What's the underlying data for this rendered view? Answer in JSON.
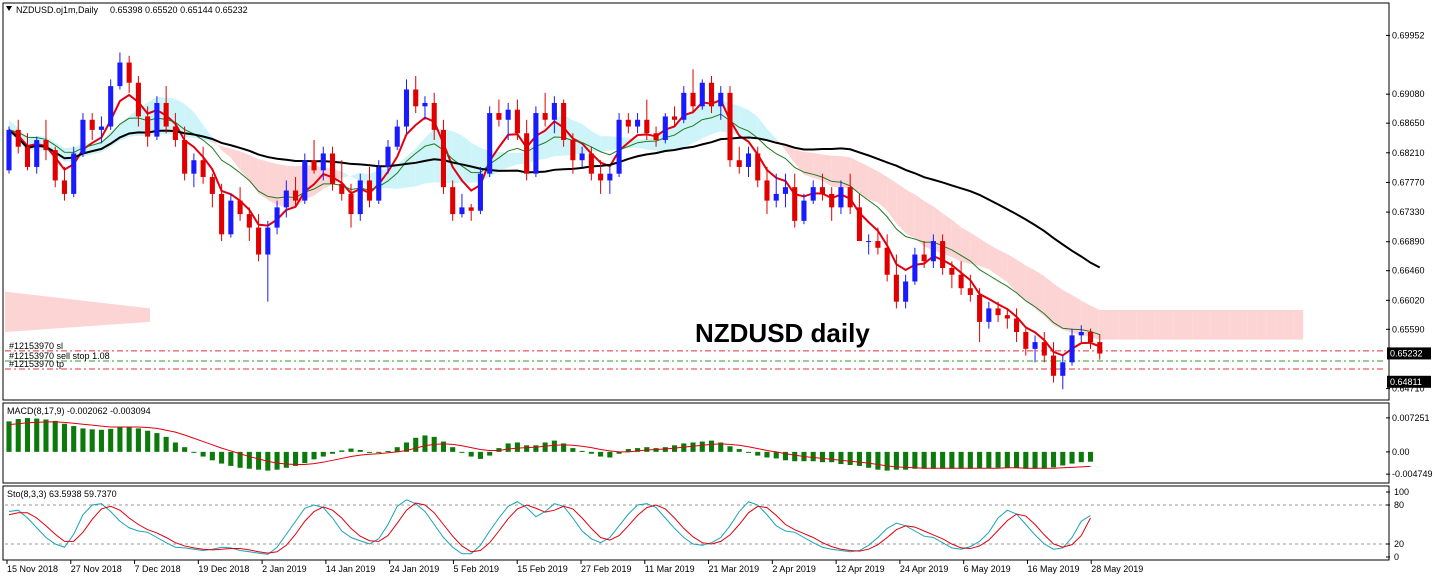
{
  "chart_data": {
    "type": "candlestick",
    "symbol_header": "NZDUSD.oj1m,Daily",
    "ohlc_header": "0.65398 0.65520 0.65144 0.65232",
    "annotation": "NZDUSD daily",
    "price_axis": {
      "ticks": [
        "0.69952",
        "0.69080",
        "0.68650",
        "0.68210",
        "0.67770",
        "0.67330",
        "0.66890",
        "0.66460",
        "0.66020",
        "0.65590",
        "0.64710"
      ],
      "ylim": [
        0.646,
        0.703
      ],
      "current_price": "0.65232",
      "tp_price": "0.64811",
      "colors": {
        "current_price_box": "#000000",
        "tp_price_box": "#000000"
      }
    },
    "date_labels": [
      "15 Nov 2018",
      "27 Nov 2018",
      "7 Dec 2018",
      "19 Dec 2018",
      "2 Jan 2019",
      "14 Jan 2019",
      "24 Jan 2019",
      "5 Feb 2019",
      "15 Feb 2019",
      "27 Feb 2019",
      "11 Mar 2019",
      "21 Mar 2019",
      "2 Apr 2019",
      "12 Apr 2019",
      "24 Apr 2019",
      "6 May 2019",
      "16 May 2019",
      "28 May 2019"
    ],
    "order_lines": [
      {
        "label": "#12153970 sl",
        "price": 0.6527,
        "color": "#e0303a",
        "style": "dash-dot"
      },
      {
        "label": "#12153970 sell stop 1.08",
        "price": 0.6512,
        "color": "#27a327",
        "style": "dash-dot"
      },
      {
        "label": "#12153970 tp",
        "price": 0.65,
        "color": "#e0303a",
        "style": "dash-dot"
      }
    ],
    "candles": [
      [
        0.6795,
        0.686,
        0.679,
        0.6855
      ],
      [
        0.6855,
        0.687,
        0.682,
        0.683
      ],
      [
        0.683,
        0.685,
        0.6795,
        0.68
      ],
      [
        0.68,
        0.6845,
        0.679,
        0.684
      ],
      [
        0.684,
        0.687,
        0.681,
        0.6825
      ],
      [
        0.6825,
        0.683,
        0.677,
        0.678
      ],
      [
        0.678,
        0.68,
        0.675,
        0.676
      ],
      [
        0.676,
        0.683,
        0.6755,
        0.682
      ],
      [
        0.682,
        0.688,
        0.6815,
        0.687
      ],
      [
        0.687,
        0.688,
        0.684,
        0.6855
      ],
      [
        0.6855,
        0.6875,
        0.6835,
        0.686
      ],
      [
        0.686,
        0.693,
        0.6855,
        0.692
      ],
      [
        0.692,
        0.697,
        0.6915,
        0.6955
      ],
      [
        0.6955,
        0.6965,
        0.691,
        0.6925
      ],
      [
        0.6925,
        0.6935,
        0.686,
        0.6875
      ],
      [
        0.6875,
        0.689,
        0.683,
        0.6845
      ],
      [
        0.6845,
        0.6905,
        0.684,
        0.6895
      ],
      [
        0.6895,
        0.692,
        0.685,
        0.686
      ],
      [
        0.686,
        0.688,
        0.683,
        0.684
      ],
      [
        0.684,
        0.686,
        0.678,
        0.679
      ],
      [
        0.679,
        0.682,
        0.677,
        0.681
      ],
      [
        0.681,
        0.683,
        0.6775,
        0.6785
      ],
      [
        0.6785,
        0.679,
        0.674,
        0.676
      ],
      [
        0.676,
        0.6775,
        0.669,
        0.67
      ],
      [
        0.67,
        0.676,
        0.6695,
        0.675
      ],
      [
        0.675,
        0.677,
        0.672,
        0.673
      ],
      [
        0.673,
        0.674,
        0.669,
        0.671
      ],
      [
        0.671,
        0.673,
        0.666,
        0.667
      ],
      [
        0.667,
        0.672,
        0.66,
        0.671
      ],
      [
        0.671,
        0.675,
        0.67,
        0.674
      ],
      [
        0.674,
        0.678,
        0.6725,
        0.6765
      ],
      [
        0.6765,
        0.6785,
        0.674,
        0.675
      ],
      [
        0.675,
        0.682,
        0.6745,
        0.681
      ],
      [
        0.681,
        0.684,
        0.679,
        0.6795
      ],
      [
        0.6795,
        0.683,
        0.678,
        0.682
      ],
      [
        0.682,
        0.683,
        0.6765,
        0.6775
      ],
      [
        0.6775,
        0.681,
        0.675,
        0.676
      ],
      [
        0.676,
        0.6775,
        0.671,
        0.673
      ],
      [
        0.673,
        0.679,
        0.672,
        0.678
      ],
      [
        0.678,
        0.68,
        0.674,
        0.675
      ],
      [
        0.675,
        0.681,
        0.6745,
        0.68
      ],
      [
        0.68,
        0.684,
        0.679,
        0.683
      ],
      [
        0.683,
        0.687,
        0.6825,
        0.686
      ],
      [
        0.686,
        0.693,
        0.685,
        0.6915
      ],
      [
        0.6915,
        0.6935,
        0.688,
        0.689
      ],
      [
        0.689,
        0.6905,
        0.687,
        0.6895
      ],
      [
        0.6895,
        0.691,
        0.684,
        0.6855
      ],
      [
        0.6855,
        0.687,
        0.676,
        0.677
      ],
      [
        0.677,
        0.678,
        0.672,
        0.673
      ],
      [
        0.673,
        0.676,
        0.6725,
        0.674
      ],
      [
        0.674,
        0.6745,
        0.672,
        0.6735
      ],
      [
        0.6735,
        0.68,
        0.673,
        0.679
      ],
      [
        0.679,
        0.689,
        0.6785,
        0.688
      ],
      [
        0.688,
        0.69,
        0.686,
        0.687
      ],
      [
        0.687,
        0.6895,
        0.684,
        0.6885
      ],
      [
        0.6885,
        0.69,
        0.684,
        0.685
      ],
      [
        0.685,
        0.687,
        0.678,
        0.679
      ],
      [
        0.679,
        0.689,
        0.6785,
        0.688
      ],
      [
        0.688,
        0.691,
        0.686,
        0.687
      ],
      [
        0.687,
        0.6905,
        0.685,
        0.6895
      ],
      [
        0.6895,
        0.69,
        0.683,
        0.684
      ],
      [
        0.684,
        0.685,
        0.679,
        0.681
      ],
      [
        0.681,
        0.683,
        0.68,
        0.682
      ],
      [
        0.682,
        0.683,
        0.678,
        0.679
      ],
      [
        0.679,
        0.681,
        0.676,
        0.678
      ],
      [
        0.678,
        0.68,
        0.676,
        0.679
      ],
      [
        0.679,
        0.688,
        0.6785,
        0.687
      ],
      [
        0.687,
        0.688,
        0.685,
        0.686
      ],
      [
        0.686,
        0.688,
        0.685,
        0.687
      ],
      [
        0.687,
        0.69,
        0.684,
        0.685
      ],
      [
        0.685,
        0.686,
        0.683,
        0.684
      ],
      [
        0.684,
        0.688,
        0.6835,
        0.6875
      ],
      [
        0.6875,
        0.689,
        0.686,
        0.687
      ],
      [
        0.687,
        0.692,
        0.6865,
        0.691
      ],
      [
        0.691,
        0.6945,
        0.688,
        0.689
      ],
      [
        0.689,
        0.693,
        0.6885,
        0.6925
      ],
      [
        0.6925,
        0.6935,
        0.688,
        0.689
      ],
      [
        0.689,
        0.692,
        0.687,
        0.691
      ],
      [
        0.691,
        0.692,
        0.68,
        0.681
      ],
      [
        0.681,
        0.683,
        0.679,
        0.68
      ],
      [
        0.68,
        0.683,
        0.6785,
        0.682
      ],
      [
        0.682,
        0.683,
        0.677,
        0.678
      ],
      [
        0.678,
        0.68,
        0.673,
        0.675
      ],
      [
        0.675,
        0.679,
        0.674,
        0.676
      ],
      [
        0.676,
        0.679,
        0.674,
        0.677
      ],
      [
        0.677,
        0.679,
        0.671,
        0.672
      ],
      [
        0.672,
        0.676,
        0.6715,
        0.675
      ],
      [
        0.675,
        0.678,
        0.6745,
        0.677
      ],
      [
        0.677,
        0.679,
        0.675,
        0.676
      ],
      [
        0.676,
        0.677,
        0.672,
        0.674
      ],
      [
        0.674,
        0.678,
        0.673,
        0.677
      ],
      [
        0.677,
        0.679,
        0.673,
        0.674
      ],
      [
        0.674,
        0.676,
        0.669,
        0.669
      ],
      [
        0.669,
        0.67,
        0.667,
        0.669
      ],
      [
        0.669,
        0.671,
        0.667,
        0.668
      ],
      [
        0.668,
        0.67,
        0.663,
        0.664
      ],
      [
        0.664,
        0.667,
        0.659,
        0.66
      ],
      [
        0.66,
        0.664,
        0.659,
        0.663
      ],
      [
        0.663,
        0.668,
        0.6625,
        0.667
      ],
      [
        0.667,
        0.669,
        0.665,
        0.666
      ],
      [
        0.666,
        0.67,
        0.665,
        0.669
      ],
      [
        0.669,
        0.67,
        0.664,
        0.665
      ],
      [
        0.665,
        0.666,
        0.662,
        0.664
      ],
      [
        0.664,
        0.666,
        0.661,
        0.662
      ],
      [
        0.662,
        0.664,
        0.66,
        0.661
      ],
      [
        0.661,
        0.662,
        0.654,
        0.657
      ],
      [
        0.657,
        0.66,
        0.656,
        0.659
      ],
      [
        0.659,
        0.66,
        0.657,
        0.658
      ],
      [
        0.658,
        0.659,
        0.656,
        0.6575
      ],
      [
        0.6575,
        0.659,
        0.654,
        0.6555
      ],
      [
        0.6555,
        0.656,
        0.652,
        0.653
      ],
      [
        0.653,
        0.655,
        0.651,
        0.654
      ],
      [
        0.654,
        0.6555,
        0.651,
        0.652
      ],
      [
        0.652,
        0.654,
        0.648,
        0.649
      ],
      [
        0.649,
        0.652,
        0.647,
        0.651
      ],
      [
        0.651,
        0.656,
        0.6505,
        0.655
      ],
      [
        0.655,
        0.6565,
        0.654,
        0.6555
      ],
      [
        0.6555,
        0.656,
        0.653,
        0.654
      ],
      [
        0.654,
        0.6552,
        0.6514,
        0.6523
      ]
    ],
    "series": [
      {
        "name": "ema_fast",
        "color": "#e0000f"
      },
      {
        "name": "ema_mid",
        "color": "#1f7a1f"
      },
      {
        "name": "ema_slow",
        "color": "#000000"
      }
    ],
    "ichimoku": {
      "bullish_cloud_color": "#cdf4f8",
      "bearish_cloud_color": "#fcd4d4"
    },
    "candle_colors": {
      "bull": "#1a1aff",
      "bear": "#e00000"
    },
    "macd": {
      "header": "MACD(8,17,9) -0.002062 -0.003094",
      "axis_ticks": [
        "0.007251",
        "0.00",
        "-0.004749"
      ],
      "ylim": [
        -0.006,
        0.0085
      ],
      "hist_color": "#0b7a0b",
      "signal_color": "#e0000f",
      "values": [
        0.0065,
        0.007,
        0.0072,
        0.0071,
        0.0069,
        0.0066,
        0.006,
        0.0055,
        0.005,
        0.0048,
        0.0047,
        0.0049,
        0.0053,
        0.0054,
        0.005,
        0.0045,
        0.004,
        0.0032,
        0.002,
        0.001,
        0.0,
        -0.001,
        -0.0018,
        -0.0025,
        -0.003,
        -0.0034,
        -0.0036,
        -0.0038,
        -0.004,
        -0.0038,
        -0.0034,
        -0.003,
        -0.0024,
        -0.0016,
        -0.001,
        -0.0004,
        0.0003,
        0.0007,
        0.0004,
        0.0,
        -0.0002,
        0.0002,
        0.001,
        0.002,
        0.003,
        0.0035,
        0.0032,
        0.0022,
        0.001,
        0.0,
        -0.001,
        -0.0015,
        -0.0008,
        0.0008,
        0.0018,
        0.002,
        0.0014,
        0.0014,
        0.002,
        0.0024,
        0.0018,
        0.0008,
        0.0002,
        -0.0004,
        -0.001,
        -0.0012,
        -0.0004,
        0.0006,
        0.0008,
        0.001,
        0.0008,
        0.001,
        0.0014,
        0.0018,
        0.002,
        0.0022,
        0.0024,
        0.002,
        0.0012,
        0.0006,
        0.0,
        -0.0008,
        -0.0012,
        -0.0014,
        -0.0018,
        -0.002,
        -0.002,
        -0.002,
        -0.0022,
        -0.0022,
        -0.0026,
        -0.0028,
        -0.003,
        -0.0034,
        -0.0038,
        -0.004,
        -0.0038,
        -0.0038,
        -0.0036,
        -0.0036,
        -0.0036,
        -0.0036,
        -0.0036,
        -0.0036,
        -0.0036,
        -0.0035,
        -0.0035,
        -0.0034,
        -0.0034,
        -0.0034,
        -0.0036,
        -0.0036,
        -0.0036,
        -0.0033,
        -0.0029,
        -0.0025,
        -0.0022,
        -0.0021
      ],
      "signal": [
        0.0058,
        0.006,
        0.0062,
        0.0063,
        0.0064,
        0.0064,
        0.0063,
        0.0061,
        0.0059,
        0.0057,
        0.0055,
        0.0053,
        0.0053,
        0.0053,
        0.0053,
        0.0052,
        0.005,
        0.0046,
        0.0042,
        0.0036,
        0.0029,
        0.0022,
        0.0015,
        0.0008,
        0.0002,
        -0.0004,
        -0.001,
        -0.0015,
        -0.002,
        -0.0024,
        -0.0026,
        -0.0027,
        -0.0027,
        -0.0025,
        -0.0022,
        -0.0018,
        -0.0014,
        -0.001,
        -0.0007,
        -0.0005,
        -0.0004,
        -0.0002,
        0.0,
        0.0003,
        0.0008,
        0.0013,
        0.0016,
        0.0017,
        0.0016,
        0.0013,
        0.0009,
        0.0005,
        0.0003,
        0.0003,
        0.0006,
        0.0008,
        0.0009,
        0.001,
        0.0012,
        0.0014,
        0.0015,
        0.0014,
        0.0012,
        0.0009,
        0.0005,
        0.0002,
        0.0,
        0.0,
        0.0002,
        0.0004,
        0.0005,
        0.0006,
        0.0008,
        0.001,
        0.0012,
        0.0014,
        0.0016,
        0.0017,
        0.0016,
        0.0014,
        0.0011,
        0.0007,
        0.0003,
        0.0,
        -0.0004,
        -0.0007,
        -0.001,
        -0.0012,
        -0.0014,
        -0.0016,
        -0.0018,
        -0.002,
        -0.0022,
        -0.0024,
        -0.0027,
        -0.003,
        -0.0032,
        -0.0033,
        -0.0034,
        -0.0035,
        -0.0035,
        -0.0035,
        -0.0035,
        -0.0035,
        -0.0035,
        -0.0035,
        -0.0035,
        -0.0035,
        -0.0034,
        -0.0034,
        -0.0035,
        -0.0035,
        -0.0035,
        -0.0035,
        -0.0034,
        -0.0033,
        -0.0032,
        -0.0031
      ]
    },
    "stochastic": {
      "header": "Sto(8,3,3) 63.5938 59.7370",
      "axis_ticks": [
        "100",
        "80",
        "20",
        "0"
      ],
      "ylim": [
        0,
        100
      ],
      "main_color": "#1aa3b8",
      "signal_color": "#e0000f",
      "main": [
        70,
        72,
        60,
        45,
        30,
        20,
        15,
        35,
        65,
        80,
        82,
        70,
        55,
        45,
        40,
        38,
        30,
        22,
        15,
        14,
        12,
        10,
        12,
        15,
        14,
        10,
        8,
        6,
        4,
        15,
        35,
        55,
        75,
        80,
        76,
        60,
        40,
        30,
        25,
        20,
        28,
        50,
        78,
        88,
        82,
        70,
        50,
        30,
        15,
        5,
        5,
        18,
        40,
        60,
        78,
        85,
        76,
        62,
        70,
        82,
        78,
        60,
        40,
        28,
        22,
        30,
        48,
        66,
        80,
        82,
        76,
        60,
        44,
        30,
        20,
        18,
        22,
        30,
        48,
        70,
        85,
        80,
        65,
        48,
        40,
        38,
        30,
        22,
        15,
        12,
        10,
        8,
        10,
        18,
        30,
        44,
        52,
        48,
        40,
        32,
        30,
        22,
        14,
        12,
        16,
        24,
        38,
        60,
        72,
        66,
        50,
        34,
        20,
        12,
        14,
        30,
        55,
        64
      ],
      "signal": [
        65,
        68,
        68,
        60,
        48,
        35,
        24,
        24,
        38,
        58,
        74,
        78,
        72,
        60,
        50,
        42,
        37,
        30,
        22,
        17,
        14,
        12,
        11,
        12,
        13,
        13,
        11,
        8,
        6,
        8,
        18,
        35,
        55,
        70,
        77,
        72,
        60,
        44,
        32,
        25,
        24,
        33,
        52,
        72,
        83,
        80,
        68,
        50,
        32,
        17,
        8,
        10,
        22,
        40,
        59,
        74,
        80,
        75,
        69,
        72,
        78,
        74,
        60,
        44,
        30,
        26,
        33,
        48,
        64,
        76,
        80,
        74,
        60,
        44,
        31,
        22,
        20,
        24,
        34,
        50,
        68,
        78,
        76,
        64,
        50,
        42,
        36,
        30,
        22,
        16,
        12,
        10,
        9,
        12,
        19,
        30,
        42,
        48,
        46,
        40,
        34,
        28,
        20,
        14,
        13,
        17,
        26,
        41,
        56,
        66,
        63,
        50,
        34,
        20,
        15,
        19,
        33,
        60
      ]
    }
  }
}
